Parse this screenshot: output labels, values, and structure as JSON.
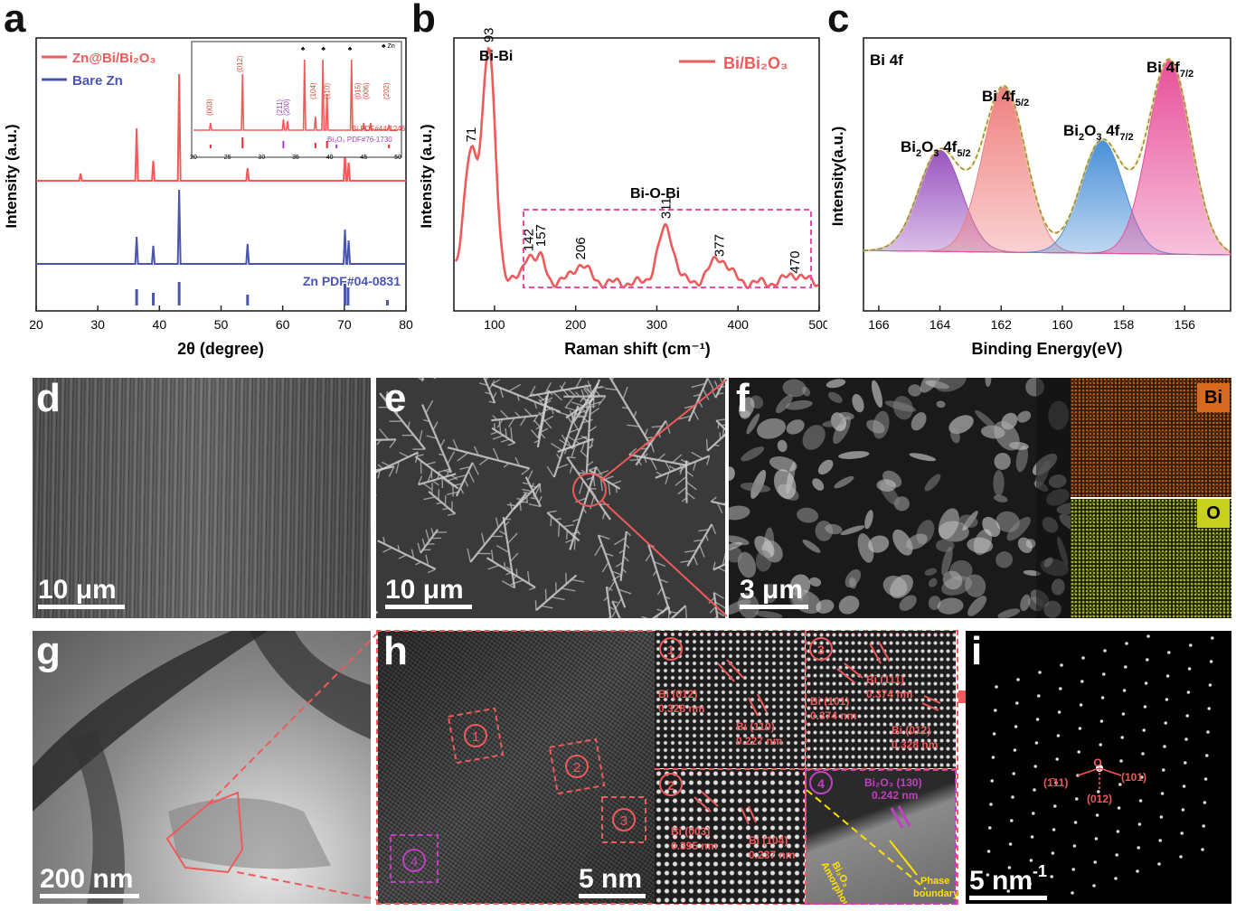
{
  "panel_letters": {
    "a": "a",
    "b": "b",
    "c": "c",
    "d": "d",
    "e": "e",
    "f": "f",
    "g": "g",
    "h": "h",
    "i": "i"
  },
  "colors": {
    "red": "#ef5a5a",
    "blue": "#4a55b0",
    "pink": "#e84ea0",
    "purple": "#9a4fc0",
    "yellow": "#ffe000"
  },
  "chart_data": [
    {
      "panel": "a",
      "type": "line",
      "xlabel": "2θ (degree)",
      "ylabel": "Intensity (a.u.)",
      "xlim": [
        20,
        80
      ],
      "xticks": [
        20,
        30,
        40,
        50,
        60,
        70,
        80
      ],
      "legend": [
        "Zn@Bi/Bi₂O₃",
        "Bare Zn"
      ],
      "series": [
        {
          "name": "Zn@Bi/Bi₂O₃",
          "color": "#ef5a5a",
          "peaks": [
            [
              27.2,
              8
            ],
            [
              36.3,
              58
            ],
            [
              39.0,
              22
            ],
            [
              43.2,
              118
            ],
            [
              54.3,
              14
            ],
            [
              70.1,
              30
            ],
            [
              70.7,
              20
            ]
          ]
        },
        {
          "name": "Bare Zn",
          "color": "#4a55b0",
          "peaks": [
            [
              36.3,
              30
            ],
            [
              39.0,
              20
            ],
            [
              43.2,
              82
            ],
            [
              54.3,
              22
            ],
            [
              70.1,
              38
            ],
            [
              70.7,
              26
            ]
          ]
        }
      ],
      "reference": {
        "label": "Zn PDF#04-0831",
        "lines": [
          [
            36.3,
            18
          ],
          [
            39.0,
            14
          ],
          [
            43.2,
            26
          ],
          [
            54.3,
            12
          ],
          [
            70.1,
            24
          ],
          [
            70.6,
            20
          ],
          [
            77.0,
            6
          ]
        ]
      },
      "inset": {
        "xlim": [
          20,
          50
        ],
        "xticks": [
          20,
          25,
          30,
          35,
          40,
          45,
          50
        ],
        "peak_labels": [
          "(003)",
          "(012)",
          "(211)",
          "(200)",
          "(104)",
          "(110)",
          "(015)",
          "(006)",
          "(202)"
        ],
        "zn_legend": "♣ Zn",
        "ref1": "Bi PDF#44-1246",
        "ref2": "Bi₂O₃ PDF#76-1730"
      }
    },
    {
      "panel": "b",
      "type": "line",
      "xlabel": "Raman shift (cm⁻¹)",
      "ylabel": "Intensity (a.u.)",
      "xlim": [
        50,
        500
      ],
      "xticks": [
        100,
        200,
        300,
        400,
        500
      ],
      "legend": "Bi/Bi₂O₃",
      "annotations": [
        "Bi-Bi",
        "Bi-O-Bi"
      ],
      "peaks": [
        [
          71,
          0.52
        ],
        [
          93,
          1.0
        ],
        [
          142,
          0.12
        ],
        [
          157,
          0.1
        ],
        [
          206,
          0.08
        ],
        [
          311,
          0.24
        ],
        [
          377,
          0.11
        ],
        [
          470,
          0.04
        ]
      ],
      "peak_labels": [
        "71",
        "93",
        "142",
        "157",
        "206",
        "311",
        "377",
        "470"
      ]
    },
    {
      "panel": "c",
      "type": "line",
      "xlabel": "Binding Energy(eV)",
      "ylabel": "Intensity(a.u.)",
      "xlim": [
        166.5,
        154.5
      ],
      "xticks": [
        166,
        164,
        162,
        160,
        158,
        156
      ],
      "title": "Bi 4f",
      "components": [
        {
          "name": "Bi₂O₃ 4f5/2",
          "center": 164.0,
          "height": 0.52,
          "color": "#9a55c0"
        },
        {
          "name": "Bi 4f5/2",
          "center": 161.9,
          "height": 0.85,
          "color": "#f08080"
        },
        {
          "name": "Bi₂O₃ 4f7/2",
          "center": 158.7,
          "height": 0.58,
          "color": "#4a90d8"
        },
        {
          "name": "Bi 4f7/2",
          "center": 156.5,
          "height": 1.0,
          "color": "#e8509a"
        }
      ]
    }
  ],
  "panel_b_labels": {
    "bibi": "Bi-Bi",
    "biobi": "Bi-O-Bi"
  },
  "panel_c_labels": {
    "l1_main": "Bi",
    "l1_sub": "2",
    "l1_main2": "O",
    "l1_sub2": "3",
    "l1_rest": " 4f",
    "l1_sub3": "5/2",
    "l2_main": "Bi 4f",
    "l2_sub": "5/2",
    "l3_rest": " 4f",
    "l3_sub3": "7/2",
    "l4_main": "Bi 4f",
    "l4_sub": "7/2"
  },
  "scales": {
    "d": "10 μm",
    "e": "10 μm",
    "f": "3 μm",
    "g": "200 nm",
    "h": "5 nm",
    "i": "5 nm"
  },
  "scale_i_sup": "-1",
  "eds": {
    "bi": "Bi",
    "o": "O"
  },
  "hrtem": {
    "regions": [
      "1",
      "2",
      "3",
      "4"
    ],
    "r1a": "Bi (012)",
    "r1b": "0.328 nm",
    "r1c": "Bi (110)",
    "r1d": "0.227 nm",
    "r3a": "Bi (111)",
    "r3b": "0.374 nm",
    "r3c": "Bi (101)",
    "r3d": "0.374 nm",
    "r3e": "Bi (012)",
    "r3f": "0.328 nm",
    "r2a": "Bi (003)",
    "r2b": "0.395 nm",
    "r2c": "Bi (104)",
    "r2d": "0.237 nm",
    "r4a": "Bi₂O₃ (130)",
    "r4b": "0.242 nm",
    "r4c": "Amorphous",
    "r4d": "Bi₂O₃",
    "r4e": "Phase",
    "r4f": "boundary"
  },
  "saed": {
    "o": "O",
    "a": "(1̄11)",
    "b": "(101)",
    "c": "(012)"
  }
}
